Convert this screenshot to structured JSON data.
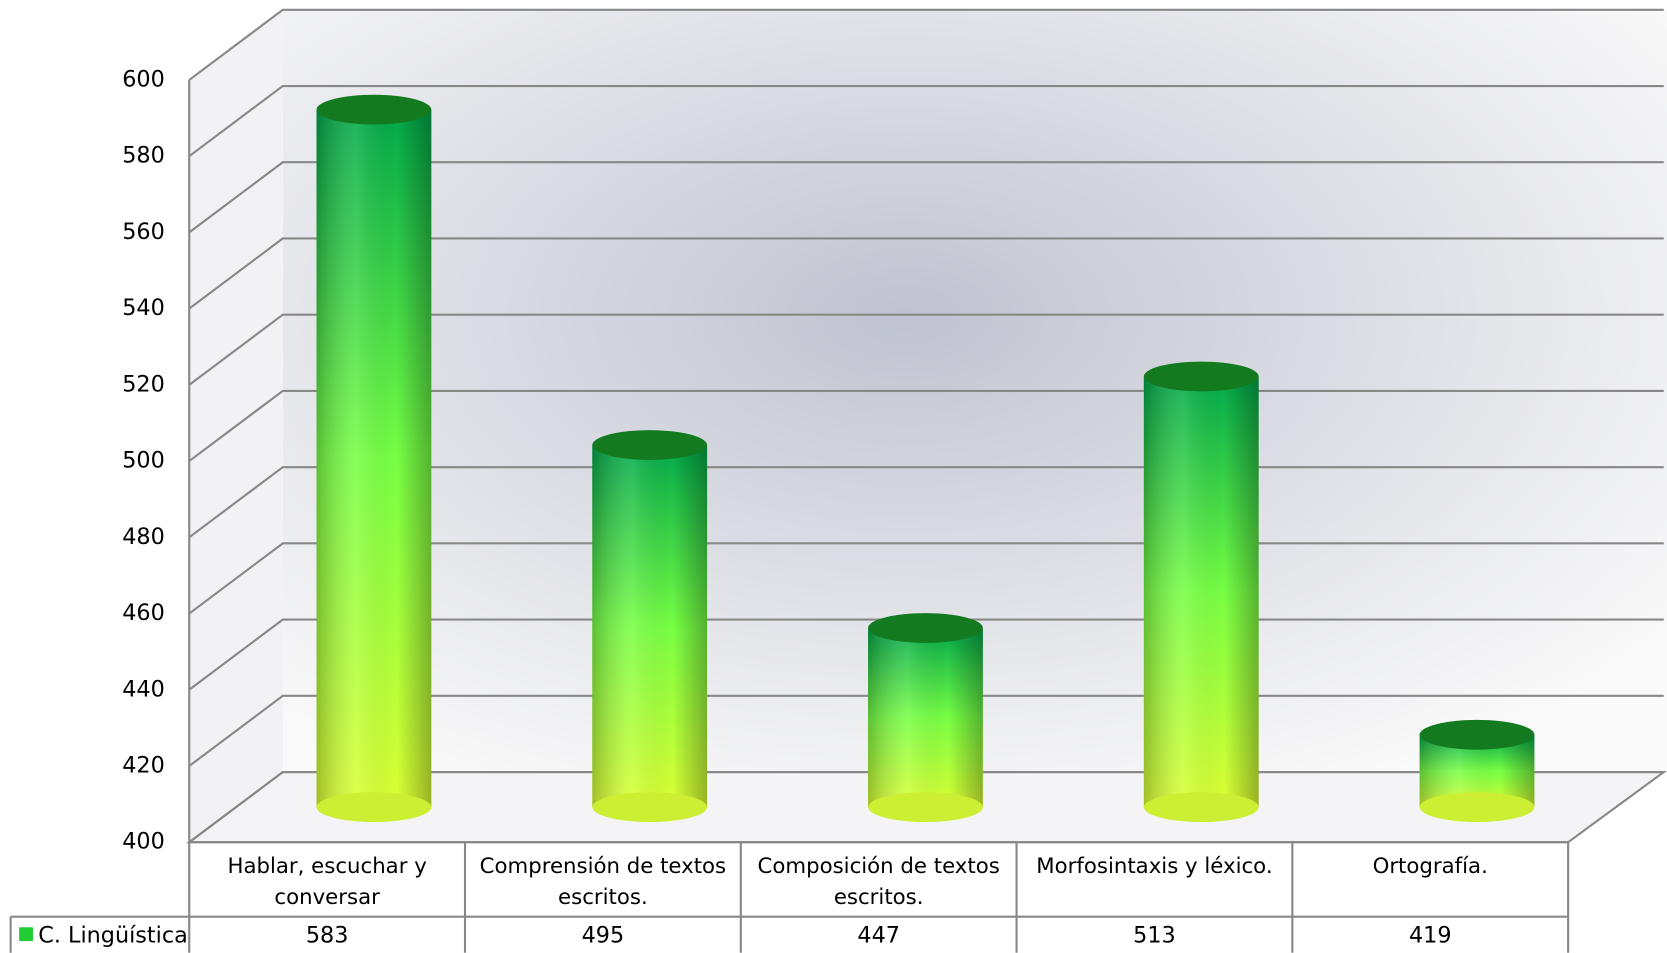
{
  "chart_data": {
    "type": "cylinder",
    "categories": [
      "Hablar, escuchar y conversar",
      "Comprensión de textos escritos.",
      "Composición de textos escritos.",
      "Morfosintaxis y léxico.",
      "Ortografía."
    ],
    "series": [
      {
        "name": "C. Lingüística",
        "color": "#22cc33",
        "values": [
          583,
          495,
          447,
          513,
          419
        ]
      }
    ],
    "ylim": [
      400,
      600
    ],
    "yticks": [
      400,
      420,
      440,
      460,
      480,
      500,
      520,
      540,
      560,
      580,
      600
    ],
    "grid": true
  }
}
